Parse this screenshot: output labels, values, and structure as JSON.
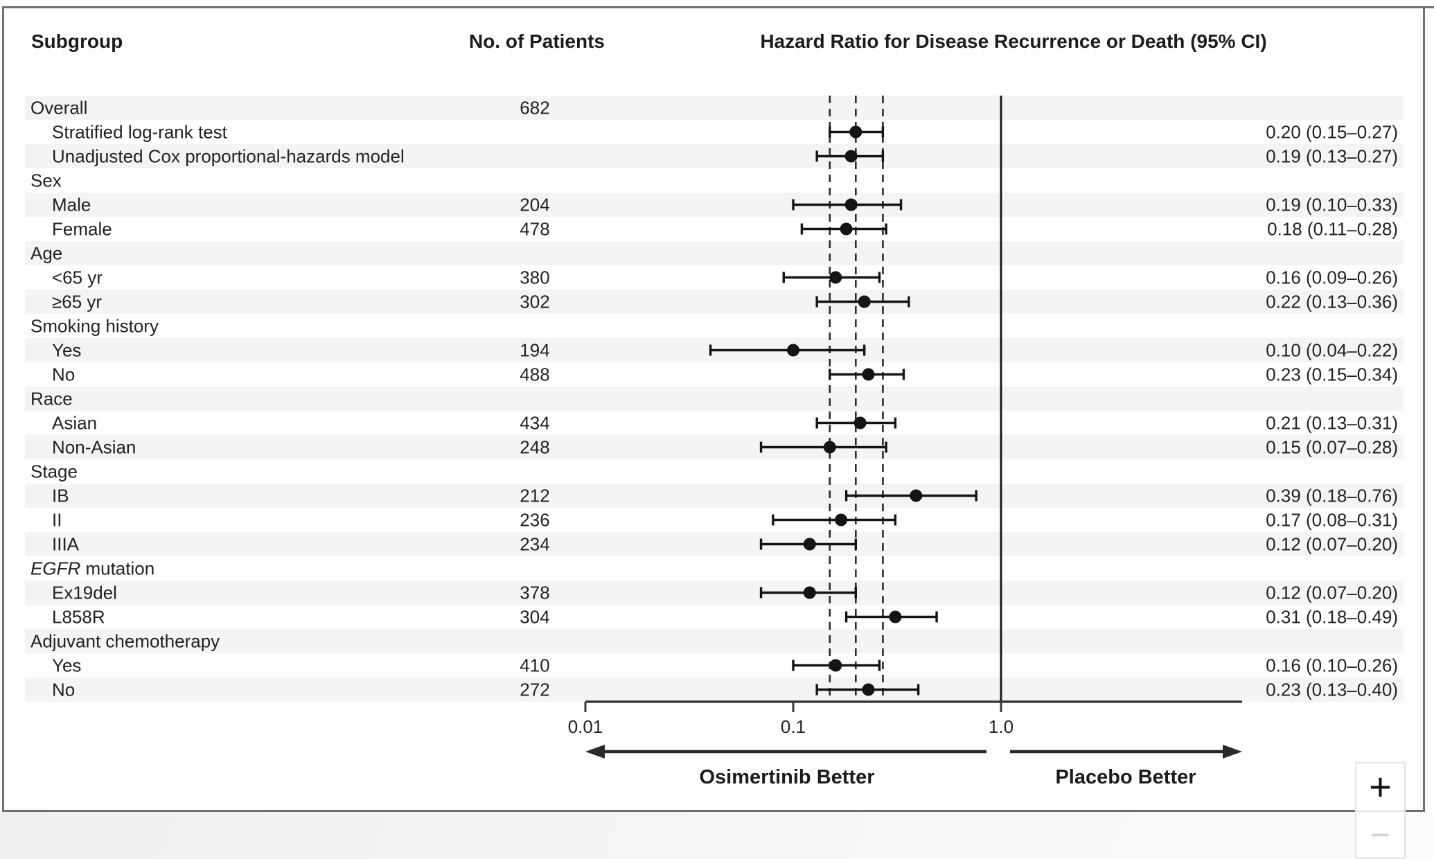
{
  "figure": {
    "columns": {
      "subgroup": "Subgroup",
      "patients": "No. of Patients",
      "hazard": "Hazard Ratio for Disease Recurrence or Death (95% CI)"
    }
  },
  "viewer": {
    "zoom_in_label": "+",
    "zoom_out_label": "−"
  },
  "colors": {
    "text": "#222222",
    "stripe": "#f4f4f5",
    "card_border": "#6f6f6f",
    "axis": "#3a3a3a",
    "marker": "#141414",
    "zoom_out_disabled": "#d2d2d2"
  },
  "chart_data": {
    "type": "forest",
    "title": "Hazard Ratio for Disease Recurrence or Death (95% CI)",
    "x_axis": {
      "scale": "log10",
      "tick_values": [
        0.01,
        0.1,
        1.0
      ],
      "tick_labels": [
        "0.01",
        "0.1",
        "1.0"
      ],
      "min": 0.01,
      "max": 15
    },
    "reference_lines": {
      "solid": 1.0,
      "dashed": [
        0.15,
        0.2,
        0.27
      ]
    },
    "better_labels": {
      "left": "Osimertinib Better",
      "right": "Placebo Better"
    },
    "rows": [
      {
        "label": "Overall",
        "indent": 0,
        "patients": "682"
      },
      {
        "label": "Stratified log-rank test",
        "indent": 1,
        "hr": 0.2,
        "lo": 0.15,
        "hi": 0.27,
        "hr_text": "0.20 (0.15–0.27)"
      },
      {
        "label": "Unadjusted Cox proportional-hazards model",
        "indent": 1,
        "hr": 0.19,
        "lo": 0.13,
        "hi": 0.27,
        "hr_text": "0.19 (0.13–0.27)"
      },
      {
        "label": "Sex",
        "indent": 0
      },
      {
        "label": "Male",
        "indent": 1,
        "patients": "204",
        "hr": 0.19,
        "lo": 0.1,
        "hi": 0.33,
        "hr_text": "0.19 (0.10–0.33)"
      },
      {
        "label": "Female",
        "indent": 1,
        "patients": "478",
        "hr": 0.18,
        "lo": 0.11,
        "hi": 0.28,
        "hr_text": "0.18 (0.11–0.28)"
      },
      {
        "label": "Age",
        "indent": 0
      },
      {
        "label": "<65 yr",
        "indent": 1,
        "patients": "380",
        "hr": 0.16,
        "lo": 0.09,
        "hi": 0.26,
        "hr_text": "0.16 (0.09–0.26)"
      },
      {
        "label": "≥65 yr",
        "indent": 1,
        "patients": "302",
        "hr": 0.22,
        "lo": 0.13,
        "hi": 0.36,
        "hr_text": "0.22 (0.13–0.36)"
      },
      {
        "label": "Smoking history",
        "indent": 0
      },
      {
        "label": "Yes",
        "indent": 1,
        "patients": "194",
        "hr": 0.1,
        "lo": 0.04,
        "hi": 0.22,
        "hr_text": "0.10 (0.04–0.22)"
      },
      {
        "label": "No",
        "indent": 1,
        "patients": "488",
        "hr": 0.23,
        "lo": 0.15,
        "hi": 0.34,
        "hr_text": "0.23 (0.15–0.34)"
      },
      {
        "label": "Race",
        "indent": 0
      },
      {
        "label": "Asian",
        "indent": 1,
        "patients": "434",
        "hr": 0.21,
        "lo": 0.13,
        "hi": 0.31,
        "hr_text": "0.21 (0.13–0.31)"
      },
      {
        "label": "Non-Asian",
        "indent": 1,
        "patients": "248",
        "hr": 0.15,
        "lo": 0.07,
        "hi": 0.28,
        "hr_text": "0.15 (0.07–0.28)"
      },
      {
        "label": "Stage",
        "indent": 0
      },
      {
        "label": "IB",
        "indent": 1,
        "patients": "212",
        "hr": 0.39,
        "lo": 0.18,
        "hi": 0.76,
        "hr_text": "0.39 (0.18–0.76)"
      },
      {
        "label": "II",
        "indent": 1,
        "patients": "236",
        "hr": 0.17,
        "lo": 0.08,
        "hi": 0.31,
        "hr_text": "0.17 (0.08–0.31)"
      },
      {
        "label": "IIIA",
        "indent": 1,
        "patients": "234",
        "hr": 0.12,
        "lo": 0.07,
        "hi": 0.2,
        "hr_text": "0.12 (0.07–0.20)"
      },
      {
        "label": "EGFR mutation",
        "indent": 0,
        "italic_prefix": "EGFR"
      },
      {
        "label": "Ex19del",
        "indent": 1,
        "patients": "378",
        "hr": 0.12,
        "lo": 0.07,
        "hi": 0.2,
        "hr_text": "0.12 (0.07–0.20)"
      },
      {
        "label": "L858R",
        "indent": 1,
        "patients": "304",
        "hr": 0.31,
        "lo": 0.18,
        "hi": 0.49,
        "hr_text": "0.31 (0.18–0.49)"
      },
      {
        "label": "Adjuvant chemotherapy",
        "indent": 0
      },
      {
        "label": "Yes",
        "indent": 1,
        "patients": "410",
        "hr": 0.16,
        "lo": 0.1,
        "hi": 0.26,
        "hr_text": "0.16 (0.10–0.26)"
      },
      {
        "label": "No",
        "indent": 1,
        "patients": "272",
        "hr": 0.23,
        "lo": 0.13,
        "hi": 0.4,
        "hr_text": "0.23 (0.13–0.40)"
      }
    ]
  }
}
